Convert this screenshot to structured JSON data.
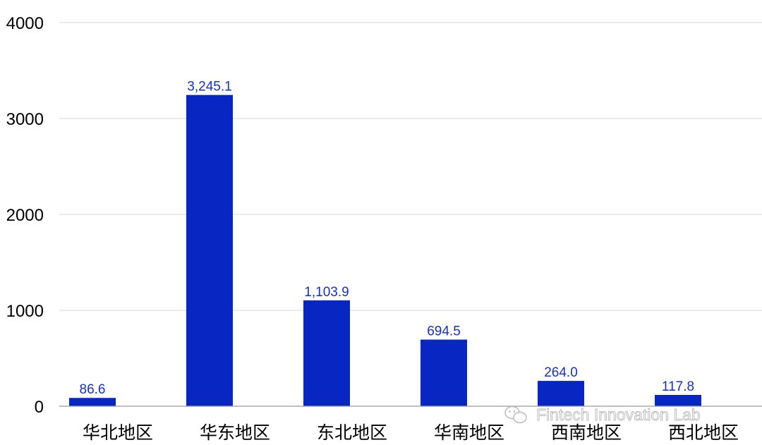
{
  "chart_data": {
    "type": "bar",
    "categories": [
      "华北地区",
      "华东地区",
      "东北地区",
      "华南地区",
      "西南地区",
      "西北地区"
    ],
    "values": [
      86.6,
      3245.1,
      1103.9,
      694.5,
      264.0,
      117.8
    ],
    "value_labels": [
      "86.6",
      "3,245.1",
      "1,103.9",
      "694.5",
      "264.0",
      "117.8"
    ],
    "y_ticks": [
      "0",
      "1000",
      "2000",
      "3000",
      "4000"
    ],
    "ylim": [
      0,
      4000
    ],
    "grid": true,
    "legend": "none",
    "title": "",
    "xlabel": "",
    "ylabel": ""
  },
  "colors": {
    "bar": "#0726c2",
    "data_label": "#1530c8",
    "grid": "#d9d9d9",
    "axis": "#999999"
  },
  "watermark": {
    "icon": "wechat-icon",
    "text": "Fintech Innovation Lab"
  }
}
